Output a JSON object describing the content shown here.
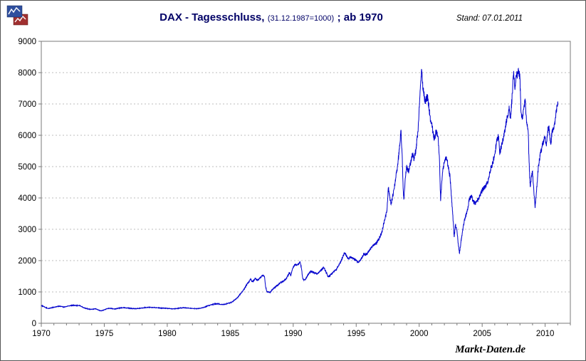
{
  "header": {
    "title_main": "DAX - Tagesschluss,",
    "title_sub": "(31.12.1987=1000)",
    "title_suffix": "; ab 1970",
    "stand": "Stand: 07.01.2011"
  },
  "footer": {
    "watermark": "Markt-Daten.de"
  },
  "colors": {
    "line": "#0000CC",
    "grid": "#bdbdbd",
    "axis": "#7a7a7a",
    "tick_text": "#000000",
    "title": "#000066",
    "logo_blue": "#2F4F9E",
    "logo_red": "#A03030"
  },
  "chart_data": {
    "type": "line",
    "title": "DAX - Tagesschluss, (31.12.1987=1000) ; ab 1970",
    "xlabel": "",
    "ylabel": "",
    "x_axis": {
      "min": 1970,
      "max": 2012,
      "major_tick_step": 5,
      "minor_tick_step": 1,
      "tick_labels": [
        1970,
        1975,
        1980,
        1985,
        1990,
        1995,
        2000,
        2005,
        2010
      ]
    },
    "y_axis": {
      "min": 0,
      "max": 9000,
      "tick_step": 1000,
      "tick_labels": [
        0,
        1000,
        2000,
        3000,
        4000,
        5000,
        6000,
        7000,
        8000,
        9000
      ]
    },
    "grid": "horizontal-dashed",
    "legend": "none",
    "series": [
      {
        "name": "DAX Tagesschluss",
        "color": "#0000CC",
        "points": [
          [
            1970.0,
            565
          ],
          [
            1970.15,
            540
          ],
          [
            1970.3,
            510
          ],
          [
            1970.45,
            485
          ],
          [
            1970.6,
            470
          ],
          [
            1970.75,
            490
          ],
          [
            1970.9,
            505
          ],
          [
            1971.05,
            515
          ],
          [
            1971.2,
            530
          ],
          [
            1971.4,
            545
          ],
          [
            1971.6,
            535
          ],
          [
            1971.8,
            515
          ],
          [
            1972.0,
            535
          ],
          [
            1972.2,
            555
          ],
          [
            1972.4,
            570
          ],
          [
            1972.6,
            575
          ],
          [
            1972.8,
            560
          ],
          [
            1973.0,
            570
          ],
          [
            1973.15,
            545
          ],
          [
            1973.3,
            510
          ],
          [
            1973.5,
            480
          ],
          [
            1973.7,
            460
          ],
          [
            1973.9,
            445
          ],
          [
            1974.1,
            450
          ],
          [
            1974.3,
            465
          ],
          [
            1974.5,
            430
          ],
          [
            1974.7,
            395
          ],
          [
            1974.85,
            405
          ],
          [
            1975.0,
            430
          ],
          [
            1975.2,
            465
          ],
          [
            1975.4,
            480
          ],
          [
            1975.6,
            470
          ],
          [
            1975.8,
            455
          ],
          [
            1976.0,
            470
          ],
          [
            1976.25,
            490
          ],
          [
            1976.5,
            500
          ],
          [
            1976.75,
            490
          ],
          [
            1977.0,
            480
          ],
          [
            1977.25,
            470
          ],
          [
            1977.5,
            465
          ],
          [
            1977.75,
            475
          ],
          [
            1978.0,
            485
          ],
          [
            1978.25,
            500
          ],
          [
            1978.5,
            510
          ],
          [
            1978.75,
            505
          ],
          [
            1979.0,
            500
          ],
          [
            1979.25,
            495
          ],
          [
            1979.5,
            485
          ],
          [
            1979.75,
            480
          ],
          [
            1980.0,
            475
          ],
          [
            1980.25,
            465
          ],
          [
            1980.5,
            460
          ],
          [
            1980.75,
            470
          ],
          [
            1981.0,
            485
          ],
          [
            1981.25,
            495
          ],
          [
            1981.5,
            490
          ],
          [
            1981.75,
            480
          ],
          [
            1982.0,
            475
          ],
          [
            1982.25,
            465
          ],
          [
            1982.5,
            470
          ],
          [
            1982.75,
            490
          ],
          [
            1983.0,
            520
          ],
          [
            1983.2,
            555
          ],
          [
            1983.4,
            580
          ],
          [
            1983.6,
            600
          ],
          [
            1983.8,
            615
          ],
          [
            1984.0,
            620
          ],
          [
            1984.2,
            605
          ],
          [
            1984.4,
            595
          ],
          [
            1984.6,
            605
          ],
          [
            1984.8,
            630
          ],
          [
            1985.0,
            655
          ],
          [
            1985.2,
            700
          ],
          [
            1985.4,
            760
          ],
          [
            1985.6,
            830
          ],
          [
            1985.8,
            930
          ],
          [
            1986.0,
            1030
          ],
          [
            1986.15,
            1120
          ],
          [
            1986.3,
            1230
          ],
          [
            1986.45,
            1300
          ],
          [
            1986.6,
            1400
          ],
          [
            1986.75,
            1330
          ],
          [
            1986.9,
            1380
          ],
          [
            1987.0,
            1440
          ],
          [
            1987.15,
            1360
          ],
          [
            1987.3,
            1420
          ],
          [
            1987.45,
            1480
          ],
          [
            1987.6,
            1540
          ],
          [
            1987.72,
            1480
          ],
          [
            1987.8,
            1180
          ],
          [
            1987.9,
            1020
          ],
          [
            1988.0,
            1000
          ],
          [
            1988.15,
            980
          ],
          [
            1988.3,
            1060
          ],
          [
            1988.5,
            1130
          ],
          [
            1988.7,
            1200
          ],
          [
            1988.9,
            1270
          ],
          [
            1989.0,
            1300
          ],
          [
            1989.2,
            1340
          ],
          [
            1989.4,
            1390
          ],
          [
            1989.6,
            1530
          ],
          [
            1989.72,
            1620
          ],
          [
            1989.8,
            1500
          ],
          [
            1989.9,
            1680
          ],
          [
            1990.0,
            1790
          ],
          [
            1990.15,
            1880
          ],
          [
            1990.3,
            1850
          ],
          [
            1990.45,
            1900
          ],
          [
            1990.55,
            1950
          ],
          [
            1990.65,
            1750
          ],
          [
            1990.75,
            1450
          ],
          [
            1990.85,
            1370
          ],
          [
            1991.0,
            1420
          ],
          [
            1991.1,
            1490
          ],
          [
            1991.25,
            1600
          ],
          [
            1991.4,
            1670
          ],
          [
            1991.55,
            1630
          ],
          [
            1991.7,
            1610
          ],
          [
            1991.85,
            1580
          ],
          [
            1992.0,
            1610
          ],
          [
            1992.15,
            1680
          ],
          [
            1992.3,
            1740
          ],
          [
            1992.42,
            1780
          ],
          [
            1992.55,
            1680
          ],
          [
            1992.7,
            1560
          ],
          [
            1992.8,
            1470
          ],
          [
            1992.9,
            1510
          ],
          [
            1993.0,
            1560
          ],
          [
            1993.2,
            1640
          ],
          [
            1993.4,
            1700
          ],
          [
            1993.6,
            1840
          ],
          [
            1993.8,
            1980
          ],
          [
            1994.0,
            2180
          ],
          [
            1994.1,
            2250
          ],
          [
            1994.25,
            2130
          ],
          [
            1994.4,
            2050
          ],
          [
            1994.55,
            2110
          ],
          [
            1994.7,
            2080
          ],
          [
            1994.85,
            2040
          ],
          [
            1995.0,
            2010
          ],
          [
            1995.15,
            1950
          ],
          [
            1995.3,
            2000
          ],
          [
            1995.45,
            2080
          ],
          [
            1995.6,
            2220
          ],
          [
            1995.75,
            2190
          ],
          [
            1995.9,
            2230
          ],
          [
            1996.0,
            2300
          ],
          [
            1996.2,
            2420
          ],
          [
            1996.4,
            2500
          ],
          [
            1996.6,
            2560
          ],
          [
            1996.8,
            2680
          ],
          [
            1997.0,
            2850
          ],
          [
            1997.15,
            3100
          ],
          [
            1997.3,
            3350
          ],
          [
            1997.45,
            3650
          ],
          [
            1997.55,
            4330
          ],
          [
            1997.65,
            4100
          ],
          [
            1997.75,
            3800
          ],
          [
            1997.85,
            3950
          ],
          [
            1997.95,
            4150
          ],
          [
            1998.0,
            4280
          ],
          [
            1998.15,
            4650
          ],
          [
            1998.3,
            5100
          ],
          [
            1998.45,
            5650
          ],
          [
            1998.55,
            6170
          ],
          [
            1998.65,
            5400
          ],
          [
            1998.73,
            4300
          ],
          [
            1998.78,
            3950
          ],
          [
            1998.88,
            4550
          ],
          [
            1999.0,
            5000
          ],
          [
            1999.15,
            4850
          ],
          [
            1999.3,
            5100
          ],
          [
            1999.45,
            5400
          ],
          [
            1999.6,
            5250
          ],
          [
            1999.75,
            5550
          ],
          [
            1999.9,
            6100
          ],
          [
            2000.0,
            6900
          ],
          [
            2000.1,
            7600
          ],
          [
            2000.2,
            8065
          ],
          [
            2000.3,
            7500
          ],
          [
            2000.4,
            7250
          ],
          [
            2000.5,
            7000
          ],
          [
            2000.6,
            7250
          ],
          [
            2000.7,
            7150
          ],
          [
            2000.8,
            6800
          ],
          [
            2000.9,
            6450
          ],
          [
            2001.0,
            6350
          ],
          [
            2001.1,
            6100
          ],
          [
            2001.2,
            5850
          ],
          [
            2001.35,
            6150
          ],
          [
            2001.5,
            5950
          ],
          [
            2001.6,
            5350
          ],
          [
            2001.7,
            3900
          ],
          [
            2001.8,
            4550
          ],
          [
            2001.9,
            4950
          ],
          [
            2002.0,
            5150
          ],
          [
            2002.15,
            5300
          ],
          [
            2002.3,
            5050
          ],
          [
            2002.45,
            4650
          ],
          [
            2002.6,
            3850
          ],
          [
            2002.7,
            3250
          ],
          [
            2002.78,
            2750
          ],
          [
            2002.88,
            3150
          ],
          [
            2003.0,
            2950
          ],
          [
            2003.1,
            2550
          ],
          [
            2003.2,
            2230
          ],
          [
            2003.3,
            2550
          ],
          [
            2003.45,
            2950
          ],
          [
            2003.6,
            3300
          ],
          [
            2003.8,
            3550
          ],
          [
            2004.0,
            3990
          ],
          [
            2004.15,
            4050
          ],
          [
            2004.3,
            3880
          ],
          [
            2004.45,
            3820
          ],
          [
            2004.6,
            3890
          ],
          [
            2004.8,
            4050
          ],
          [
            2005.0,
            4250
          ],
          [
            2005.15,
            4320
          ],
          [
            2005.3,
            4400
          ],
          [
            2005.45,
            4520
          ],
          [
            2005.6,
            4800
          ],
          [
            2005.8,
            5050
          ],
          [
            2006.0,
            5400
          ],
          [
            2006.15,
            5800
          ],
          [
            2006.3,
            5970
          ],
          [
            2006.4,
            5400
          ],
          [
            2006.5,
            5600
          ],
          [
            2006.65,
            5850
          ],
          [
            2006.8,
            6150
          ],
          [
            2007.0,
            6600
          ],
          [
            2007.15,
            6850
          ],
          [
            2007.25,
            6550
          ],
          [
            2007.4,
            7350
          ],
          [
            2007.5,
            8050
          ],
          [
            2007.6,
            7450
          ],
          [
            2007.7,
            7850
          ],
          [
            2007.8,
            7950
          ],
          [
            2007.9,
            8050
          ],
          [
            2008.0,
            7850
          ],
          [
            2008.08,
            6750
          ],
          [
            2008.2,
            6550
          ],
          [
            2008.32,
            6950
          ],
          [
            2008.42,
            7100
          ],
          [
            2008.55,
            6350
          ],
          [
            2008.65,
            6150
          ],
          [
            2008.75,
            4850
          ],
          [
            2008.82,
            4350
          ],
          [
            2008.92,
            4700
          ],
          [
            2009.0,
            4850
          ],
          [
            2009.1,
            4250
          ],
          [
            2009.2,
            3680
          ],
          [
            2009.3,
            4150
          ],
          [
            2009.45,
            4950
          ],
          [
            2009.6,
            5350
          ],
          [
            2009.75,
            5650
          ],
          [
            2009.9,
            5850
          ],
          [
            2010.0,
            5950
          ],
          [
            2010.1,
            5650
          ],
          [
            2010.2,
            6150
          ],
          [
            2010.3,
            6250
          ],
          [
            2010.38,
            5950
          ],
          [
            2010.45,
            5700
          ],
          [
            2010.55,
            6150
          ],
          [
            2010.65,
            6250
          ],
          [
            2010.75,
            6350
          ],
          [
            2010.85,
            6700
          ],
          [
            2010.95,
            6950
          ],
          [
            2011.02,
            6980
          ]
        ]
      }
    ]
  }
}
